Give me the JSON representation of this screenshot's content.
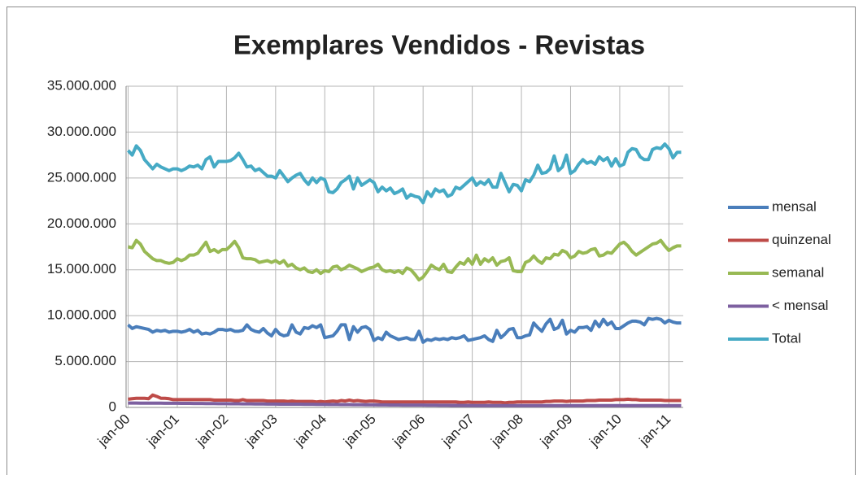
{
  "chart_data": {
    "type": "line",
    "title": "Exemplares Vendidos - Revistas",
    "categories": [
      "jan-00",
      null,
      null,
      null,
      null,
      null,
      null,
      null,
      null,
      null,
      null,
      null,
      "jan-01",
      null,
      null,
      null,
      null,
      null,
      null,
      null,
      null,
      null,
      null,
      null,
      "jan-02",
      null,
      null,
      null,
      null,
      null,
      null,
      null,
      null,
      null,
      null,
      null,
      "jan-03",
      null,
      null,
      null,
      null,
      null,
      null,
      null,
      null,
      null,
      null,
      null,
      "jan-04",
      null,
      null,
      null,
      null,
      null,
      null,
      null,
      null,
      null,
      null,
      null,
      "jan-05",
      null,
      null,
      null,
      null,
      null,
      null,
      null,
      null,
      null,
      null,
      null,
      "jan-06",
      null,
      null,
      null,
      null,
      null,
      null,
      null,
      null,
      null,
      null,
      null,
      "jan-07",
      null,
      null,
      null,
      null,
      null,
      null,
      null,
      null,
      null,
      null,
      null,
      "jan-08",
      null,
      null,
      null,
      null,
      null,
      null,
      null,
      null,
      null,
      null,
      null,
      "jan-09",
      null,
      null,
      null,
      null,
      null,
      null,
      null,
      null,
      null,
      null,
      null,
      "jan-10",
      null,
      null,
      null,
      null,
      null,
      null,
      null,
      null,
      null,
      null,
      null,
      "jan-11",
      null,
      null,
      null
    ],
    "series": [
      {
        "name": "mensal",
        "color": "#4a7ebb",
        "values": [
          9000000,
          8600000,
          8800000,
          8700000,
          8600000,
          8500000,
          8200000,
          8400000,
          8300000,
          8400000,
          8200000,
          8300000,
          8300000,
          8200000,
          8300000,
          8500000,
          8200000,
          8400000,
          8000000,
          8100000,
          8000000,
          8200000,
          8500000,
          8500000,
          8400000,
          8500000,
          8300000,
          8300000,
          8400000,
          9000000,
          8500000,
          8300000,
          8200000,
          8600000,
          8100000,
          7800000,
          8500000,
          8000000,
          7800000,
          7900000,
          9000000,
          8200000,
          8000000,
          8700000,
          8600000,
          8900000,
          8700000,
          9000000,
          7600000,
          7700000,
          7800000,
          8300000,
          9000000,
          9000000,
          7400000,
          8800000,
          8200000,
          8700000,
          8800000,
          8500000,
          7300000,
          7600000,
          7400000,
          8200000,
          7800000,
          7600000,
          7400000,
          7500000,
          7600000,
          7400000,
          7400000,
          8300000,
          7100000,
          7400000,
          7300000,
          7500000,
          7400000,
          7500000,
          7400000,
          7600000,
          7500000,
          7600000,
          7800000,
          7300000,
          7400000,
          7500000,
          7600000,
          7800000,
          7400000,
          7200000,
          8400000,
          7600000,
          8000000,
          8500000,
          8600000,
          7600000,
          7600000,
          7800000,
          7900000,
          9200000,
          8700000,
          8300000,
          9100000,
          9600000,
          8500000,
          8700000,
          9500000,
          8000000,
          8400000,
          8200000,
          8700000,
          8700000,
          8800000,
          8400000,
          9400000,
          8800000,
          9600000,
          9000000,
          9300000,
          8600000,
          8600000,
          8900000,
          9200000,
          9400000,
          9400000,
          9300000,
          9000000,
          9700000,
          9600000,
          9700000,
          9600000,
          9200000,
          9500000,
          9300000,
          9200000,
          9200000
        ]
      },
      {
        "name": "quinzenal",
        "color": "#be4b48",
        "values": [
          900000,
          950000,
          1000000,
          1000000,
          1000000,
          950000,
          1350000,
          1200000,
          1000000,
          1000000,
          950000,
          850000,
          850000,
          850000,
          850000,
          850000,
          850000,
          850000,
          850000,
          850000,
          850000,
          800000,
          800000,
          800000,
          800000,
          800000,
          750000,
          750000,
          850000,
          750000,
          750000,
          750000,
          750000,
          750000,
          700000,
          700000,
          700000,
          700000,
          700000,
          650000,
          700000,
          650000,
          650000,
          650000,
          650000,
          650000,
          600000,
          650000,
          600000,
          650000,
          700000,
          650000,
          750000,
          700000,
          800000,
          700000,
          750000,
          700000,
          650000,
          700000,
          700000,
          650000,
          600000,
          600000,
          600000,
          600000,
          600000,
          600000,
          600000,
          600000,
          600000,
          600000,
          600000,
          600000,
          600000,
          600000,
          600000,
          600000,
          600000,
          600000,
          600000,
          550000,
          550000,
          600000,
          550000,
          550000,
          550000,
          550000,
          600000,
          550000,
          550000,
          550000,
          500000,
          550000,
          550000,
          600000,
          600000,
          600000,
          600000,
          600000,
          600000,
          600000,
          650000,
          650000,
          700000,
          700000,
          700000,
          650000,
          700000,
          700000,
          700000,
          700000,
          750000,
          750000,
          750000,
          800000,
          800000,
          800000,
          800000,
          850000,
          850000,
          850000,
          900000,
          850000,
          850000,
          800000,
          800000,
          800000,
          800000,
          800000,
          800000,
          750000,
          750000,
          750000,
          750000,
          750000
        ]
      },
      {
        "name": "semanal",
        "color": "#98b954",
        "values": [
          17500000,
          17400000,
          18200000,
          17800000,
          17000000,
          16600000,
          16200000,
          16000000,
          16000000,
          15800000,
          15700000,
          15800000,
          16200000,
          16000000,
          16200000,
          16600000,
          16600000,
          16800000,
          17400000,
          18000000,
          17000000,
          17200000,
          16900000,
          17200000,
          17200000,
          17600000,
          18100000,
          17400000,
          16300000,
          16200000,
          16200000,
          16100000,
          15800000,
          15900000,
          16000000,
          15800000,
          16000000,
          15700000,
          16000000,
          15400000,
          15600000,
          15200000,
          15000000,
          15200000,
          14800000,
          14700000,
          15000000,
          14600000,
          14900000,
          14800000,
          15300000,
          15400000,
          15000000,
          15200000,
          15500000,
          15300000,
          15100000,
          14800000,
          15000000,
          15200000,
          15300000,
          15600000,
          15000000,
          14800000,
          14900000,
          14700000,
          14900000,
          14600000,
          15200000,
          15000000,
          14500000,
          13900000,
          14200000,
          14800000,
          15500000,
          15200000,
          15000000,
          15600000,
          14800000,
          14700000,
          15300000,
          15800000,
          15600000,
          16200000,
          15600000,
          16600000,
          15600000,
          16200000,
          15900000,
          16300000,
          15500000,
          15900000,
          16000000,
          16300000,
          14900000,
          14800000,
          14800000,
          15800000,
          16000000,
          16500000,
          16000000,
          15700000,
          16300000,
          16200000,
          16700000,
          16600000,
          17100000,
          16900000,
          16300000,
          16500000,
          17000000,
          16800000,
          16900000,
          17200000,
          17300000,
          16500000,
          16600000,
          16900000,
          16800000,
          17300000,
          17800000,
          18000000,
          17600000,
          17000000,
          16600000,
          16900000,
          17200000,
          17500000,
          17800000,
          17900000,
          18200000,
          17600000,
          17100000,
          17400000,
          17600000,
          17600000
        ]
      },
      {
        "name": "< mensal",
        "color": "#7d60a0",
        "values": [
          480000,
          480000,
          480000,
          470000,
          470000,
          470000,
          460000,
          460000,
          460000,
          450000,
          450000,
          450000,
          450000,
          440000,
          440000,
          440000,
          430000,
          430000,
          430000,
          420000,
          420000,
          420000,
          410000,
          410000,
          410000,
          400000,
          400000,
          400000,
          390000,
          390000,
          390000,
          380000,
          380000,
          380000,
          370000,
          370000,
          370000,
          360000,
          360000,
          360000,
          350000,
          350000,
          350000,
          340000,
          340000,
          340000,
          330000,
          330000,
          330000,
          320000,
          320000,
          320000,
          310000,
          310000,
          310000,
          300000,
          300000,
          300000,
          290000,
          290000,
          290000,
          280000,
          280000,
          280000,
          270000,
          270000,
          270000,
          260000,
          260000,
          260000,
          250000,
          250000,
          250000,
          240000,
          240000,
          240000,
          230000,
          230000,
          230000,
          220000,
          220000,
          220000,
          210000,
          210000,
          210000,
          200000,
          200000,
          200000,
          200000,
          200000,
          200000,
          200000,
          200000,
          200000,
          200000,
          200000,
          200000,
          200000,
          200000,
          200000,
          200000,
          200000,
          200000,
          200000,
          200000,
          200000,
          200000,
          200000,
          200000,
          200000,
          200000,
          200000,
          200000,
          200000,
          200000,
          200000,
          200000,
          200000,
          200000,
          200000,
          200000,
          200000,
          200000,
          200000,
          200000,
          200000,
          200000,
          200000,
          200000,
          200000,
          200000,
          200000,
          200000,
          200000,
          200000,
          200000
        ]
      },
      {
        "name": "Total",
        "color": "#46aac5",
        "values": [
          28000000,
          27500000,
          28500000,
          28000000,
          27000000,
          26500000,
          26000000,
          26500000,
          26200000,
          26000000,
          25800000,
          26000000,
          26000000,
          25800000,
          26000000,
          26300000,
          26200000,
          26400000,
          26000000,
          27000000,
          27300000,
          26200000,
          26800000,
          26800000,
          26800000,
          26900000,
          27200000,
          27700000,
          27000000,
          26200000,
          26300000,
          25800000,
          26000000,
          25600000,
          25200000,
          25200000,
          25000000,
          25800000,
          25200000,
          24600000,
          25000000,
          25300000,
          25500000,
          24800000,
          24300000,
          25000000,
          24500000,
          25000000,
          24800000,
          23500000,
          23400000,
          23800000,
          24500000,
          24800000,
          25200000,
          23800000,
          25000000,
          24200000,
          24500000,
          24800000,
          24500000,
          23500000,
          24000000,
          23600000,
          23900000,
          23300000,
          23500000,
          23800000,
          22800000,
          23200000,
          23000000,
          22900000,
          22300000,
          23500000,
          23000000,
          23800000,
          23500000,
          23700000,
          23000000,
          23200000,
          24000000,
          23800000,
          24200000,
          24600000,
          25000000,
          24200000,
          24600000,
          24300000,
          24800000,
          24000000,
          24000000,
          25500000,
          24500000,
          23500000,
          24300000,
          24200000,
          23600000,
          24800000,
          24600000,
          25300000,
          26400000,
          25500000,
          25600000,
          26000000,
          27400000,
          25800000,
          26200000,
          27500000,
          25500000,
          25800000,
          26500000,
          27000000,
          26600000,
          26800000,
          26500000,
          27300000,
          26900000,
          27200000,
          26300000,
          27100000,
          26300000,
          26500000,
          27800000,
          28200000,
          28100000,
          27300000,
          27000000,
          27000000,
          28100000,
          28300000,
          28200000,
          28700000,
          28200000,
          27200000,
          27800000,
          27800000
        ]
      }
    ],
    "ylim": [
      0,
      35000000
    ],
    "yticks": [
      0,
      {
        "value": 5000000,
        "label": "5.000.000"
      },
      {
        "value": 10000000,
        "label": "10.000.000"
      },
      {
        "value": 15000000,
        "label": "15.000.000"
      },
      {
        "value": 20000000,
        "label": "20.000.000"
      },
      {
        "value": 25000000,
        "label": "25.000.000"
      },
      {
        "value": 30000000,
        "label": "30.000.000"
      },
      {
        "value": 35000000,
        "label": "35.000.000"
      }
    ],
    "grid": true,
    "legend": "right"
  }
}
